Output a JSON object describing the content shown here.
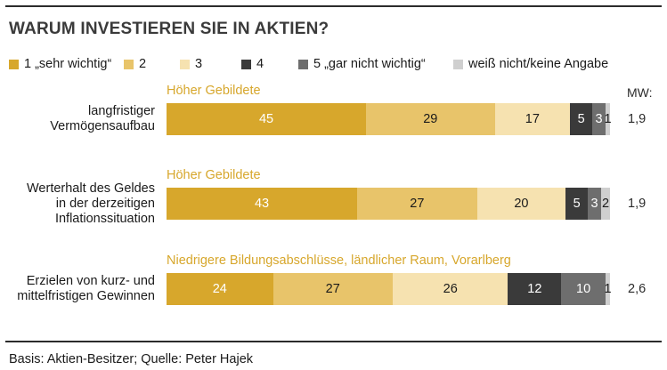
{
  "chart_data": {
    "type": "bar",
    "title": "WARUM INVESTIEREN SIE IN AKTIEN?",
    "legend": [
      {
        "label": "1 „sehr wichtig“",
        "color": "#d7a72c"
      },
      {
        "label": "2",
        "color": "#e8c46a"
      },
      {
        "label": "3",
        "color": "#f6e2b0"
      },
      {
        "label": "4",
        "color": "#3a3a3a"
      },
      {
        "label": "5 „gar nicht wichtig“",
        "color": "#6e6e6e"
      },
      {
        "label": "weiß nicht/keine Angabe",
        "color": "#cfcfcf"
      }
    ],
    "mw_header": "MW:",
    "categories": [
      "langfristiger Vermögensaufbau",
      "Werterhalt des Geldes in der derzeitigen Inflationssituation",
      "Erzielen von kurz- und mittelfristigen Gewinnen"
    ],
    "rows": [
      {
        "group": "Höher Gebildete",
        "label_lines": [
          "langfristiger",
          "Vermögensaufbau"
        ],
        "values": [
          45,
          29,
          17,
          5,
          3,
          1
        ],
        "mw": "1,9"
      },
      {
        "group": "Höher Gebildete",
        "label_lines": [
          "Werterhalt des Geldes",
          "in der derzeitigen",
          "Inflationssituation"
        ],
        "values": [
          43,
          27,
          20,
          5,
          3,
          2
        ],
        "mw": "1,9"
      },
      {
        "group": "Niedrigere Bildungsabschlüsse, ländlicher Raum, Vorarlberg",
        "label_lines": [
          "Erzielen von kurz- und",
          "mittelfristigen Gewinnen"
        ],
        "values": [
          24,
          27,
          26,
          12,
          10,
          1
        ],
        "mw": "2,6"
      }
    ],
    "series": [
      {
        "name": "1 „sehr wichtig“",
        "values": [
          45,
          43,
          24
        ]
      },
      {
        "name": "2",
        "values": [
          29,
          27,
          27
        ]
      },
      {
        "name": "3",
        "values": [
          17,
          20,
          26
        ]
      },
      {
        "name": "4",
        "values": [
          5,
          5,
          12
        ]
      },
      {
        "name": "5 „gar nicht wichtig“",
        "values": [
          3,
          3,
          10
        ]
      },
      {
        "name": "weiß nicht/keine Angabe",
        "values": [
          1,
          2,
          1
        ]
      }
    ],
    "stacked": true,
    "orientation": "horizontal",
    "xlim": [
      0,
      100
    ],
    "grid": false,
    "legend_position": "top"
  },
  "footer": "Basis: Aktien-Besitzer; Quelle: Peter Hajek"
}
